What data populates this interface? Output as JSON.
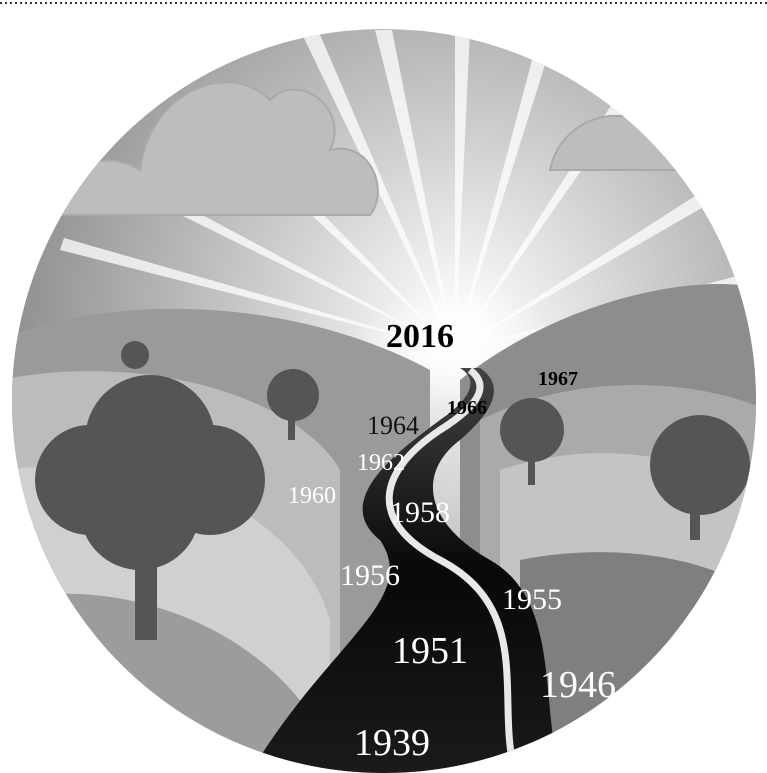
{
  "labels": [
    "2016",
    "1967",
    "1966",
    "1964",
    "1962",
    "1960",
    "1958",
    "1956",
    "1955",
    "1951",
    "1946",
    "1939"
  ]
}
